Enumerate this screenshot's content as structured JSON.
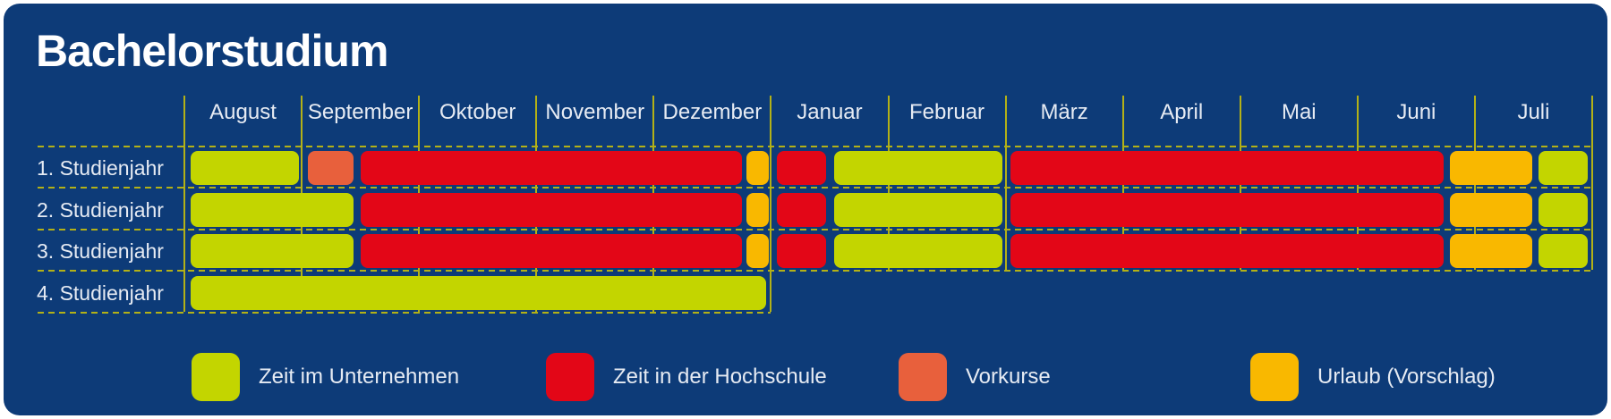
{
  "title": "Bachelorstudium",
  "colors": {
    "page": "#ffffff",
    "background": "#0d3b78",
    "grid": "#b3b117",
    "text": "#e6ebf3",
    "title_text": "#ffffff",
    "green": "#c3d500",
    "red": "#e30617",
    "orange": "#e8603c",
    "yellow": "#f9b800"
  },
  "chart_data": {
    "type": "bar",
    "variant": "gantt-timeline",
    "title": "Bachelorstudium",
    "months": [
      "August",
      "September",
      "Oktober",
      "November",
      "Dezember",
      "Januar",
      "Februar",
      "März",
      "April",
      "Mai",
      "Juni",
      "Juli"
    ],
    "legend_position": "bottom",
    "legend": [
      {
        "key": "green",
        "label": "Zeit im Unternehmen"
      },
      {
        "key": "red",
        "label": "Zeit in der Hochschule"
      },
      {
        "key": "orange",
        "label": "Vorkurse"
      },
      {
        "key": "yellow",
        "label": "Urlaub (Vorschlag)"
      }
    ],
    "rows": [
      {
        "label": "1. Studienjahr",
        "segments": [
          {
            "key": "green",
            "category": "Zeit im Unternehmen",
            "month_start": 0.05,
            "month_end": 0.98
          },
          {
            "key": "orange",
            "category": "Vorkurse",
            "month_start": 1.05,
            "month_end": 1.44
          },
          {
            "key": "red",
            "category": "Zeit in der Hochschule",
            "month_start": 1.5,
            "month_end": 4.75
          },
          {
            "key": "yellow",
            "category": "Urlaub (Vorschlag)",
            "month_start": 4.79,
            "month_end": 4.98
          },
          {
            "key": "red",
            "category": "Zeit in der Hochschule",
            "month_start": 5.05,
            "month_end": 5.47
          },
          {
            "key": "green",
            "category": "Zeit im Unternehmen",
            "month_start": 5.54,
            "month_end": 6.97
          },
          {
            "key": "red",
            "category": "Zeit in der Hochschule",
            "month_start": 7.04,
            "month_end": 10.73
          },
          {
            "key": "yellow",
            "category": "Urlaub (Vorschlag)",
            "month_start": 10.79,
            "month_end": 11.49
          },
          {
            "key": "green",
            "category": "Zeit im Unternehmen",
            "month_start": 11.54,
            "month_end": 11.96
          }
        ]
      },
      {
        "label": "2. Studienjahr",
        "segments": [
          {
            "key": "green",
            "category": "Zeit im Unternehmen",
            "month_start": 0.05,
            "month_end": 1.44
          },
          {
            "key": "red",
            "category": "Zeit in der Hochschule",
            "month_start": 1.5,
            "month_end": 4.75
          },
          {
            "key": "yellow",
            "category": "Urlaub (Vorschlag)",
            "month_start": 4.79,
            "month_end": 4.98
          },
          {
            "key": "red",
            "category": "Zeit in der Hochschule",
            "month_start": 5.05,
            "month_end": 5.47
          },
          {
            "key": "green",
            "category": "Zeit im Unternehmen",
            "month_start": 5.54,
            "month_end": 6.97
          },
          {
            "key": "red",
            "category": "Zeit in der Hochschule",
            "month_start": 7.04,
            "month_end": 10.73
          },
          {
            "key": "yellow",
            "category": "Urlaub (Vorschlag)",
            "month_start": 10.79,
            "month_end": 11.49
          },
          {
            "key": "green",
            "category": "Zeit im Unternehmen",
            "month_start": 11.54,
            "month_end": 11.96
          }
        ]
      },
      {
        "label": "3. Studienjahr",
        "segments": [
          {
            "key": "green",
            "category": "Zeit im Unternehmen",
            "month_start": 0.05,
            "month_end": 1.44
          },
          {
            "key": "red",
            "category": "Zeit in der Hochschule",
            "month_start": 1.5,
            "month_end": 4.75
          },
          {
            "key": "yellow",
            "category": "Urlaub (Vorschlag)",
            "month_start": 4.79,
            "month_end": 4.98
          },
          {
            "key": "red",
            "category": "Zeit in der Hochschule",
            "month_start": 5.05,
            "month_end": 5.47
          },
          {
            "key": "green",
            "category": "Zeit im Unternehmen",
            "month_start": 5.54,
            "month_end": 6.97
          },
          {
            "key": "red",
            "category": "Zeit in der Hochschule",
            "month_start": 7.04,
            "month_end": 10.73
          },
          {
            "key": "yellow",
            "category": "Urlaub (Vorschlag)",
            "month_start": 10.79,
            "month_end": 11.49
          },
          {
            "key": "green",
            "category": "Zeit im Unternehmen",
            "month_start": 11.54,
            "month_end": 11.96
          }
        ]
      },
      {
        "label": "4. Studienjahr",
        "segments": [
          {
            "key": "green",
            "category": "Zeit im Unternehmen",
            "month_start": 0.05,
            "month_end": 4.96
          }
        ]
      }
    ]
  }
}
